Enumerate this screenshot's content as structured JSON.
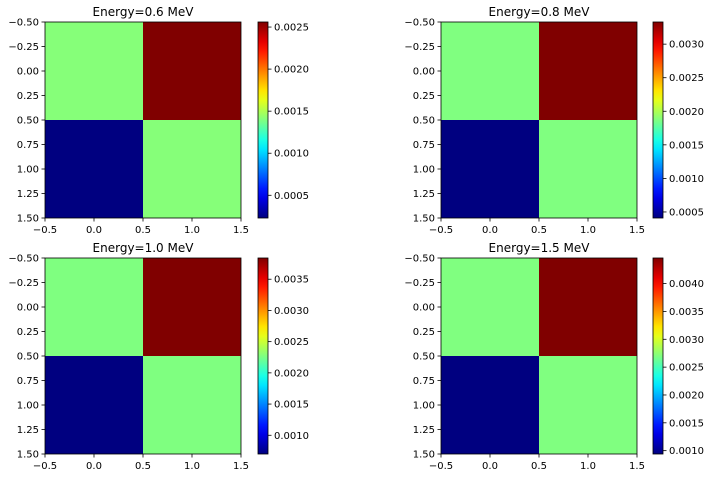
{
  "chart_data": [
    {
      "type": "heatmap",
      "title": "Energy=0.6 MeV",
      "xlim": [
        -0.5,
        1.5
      ],
      "ylim": [
        1.5,
        -0.5
      ],
      "x_ticks": [
        "−0.5",
        "0.0",
        "0.5",
        "1.0",
        "1.5"
      ],
      "y_ticks": [
        "−0.50",
        "−0.25",
        "0.00",
        "0.25",
        "0.50",
        "0.75",
        "1.00",
        "1.25",
        "1.50"
      ],
      "values": [
        [
          0.00141,
          0.00256
        ],
        [
          0.00023,
          0.00141
        ]
      ],
      "colorbar": {
        "vmin": 0.00023,
        "vmax": 0.00256,
        "ticks": [
          0.0005,
          0.001,
          0.0015,
          0.002,
          0.0025
        ],
        "tick_labels": [
          "0.0005",
          "0.0010",
          "0.0015",
          "0.0020",
          "0.0025"
        ]
      }
    },
    {
      "type": "heatmap",
      "title": "Energy=0.8 MeV",
      "xlim": [
        -0.5,
        1.5
      ],
      "ylim": [
        1.5,
        -0.5
      ],
      "x_ticks": [
        "−0.5",
        "0.0",
        "0.5",
        "1.0",
        "1.5"
      ],
      "y_ticks": [
        "−0.50",
        "−0.25",
        "0.00",
        "0.25",
        "0.50",
        "0.75",
        "1.00",
        "1.25",
        "1.50"
      ],
      "values": [
        [
          0.00187,
          0.00333
        ],
        [
          0.00041,
          0.00187
        ]
      ],
      "colorbar": {
        "vmin": 0.00041,
        "vmax": 0.00333,
        "ticks": [
          0.0005,
          0.001,
          0.0015,
          0.002,
          0.0025,
          0.003
        ],
        "tick_labels": [
          "0.0005",
          "0.0010",
          "0.0015",
          "0.0020",
          "0.0025",
          "0.0030"
        ]
      }
    },
    {
      "type": "heatmap",
      "title": "Energy=1.0 MeV",
      "xlim": [
        -0.5,
        1.5
      ],
      "ylim": [
        1.5,
        -0.5
      ],
      "x_ticks": [
        "−0.5",
        "0.0",
        "0.5",
        "1.0",
        "1.5"
      ],
      "y_ticks": [
        "−0.50",
        "−0.25",
        "0.00",
        "0.25",
        "0.50",
        "0.75",
        "1.00",
        "1.25",
        "1.50"
      ],
      "values": [
        [
          0.00227,
          0.00384
        ],
        [
          0.0007,
          0.00227
        ]
      ],
      "colorbar": {
        "vmin": 0.0007,
        "vmax": 0.00384,
        "ticks": [
          0.001,
          0.0015,
          0.002,
          0.0025,
          0.003,
          0.0035
        ],
        "tick_labels": [
          "0.0010",
          "0.0015",
          "0.0020",
          "0.0025",
          "0.0030",
          "0.0035"
        ]
      }
    },
    {
      "type": "heatmap",
      "title": "Energy=1.5 MeV",
      "xlim": [
        -0.5,
        1.5
      ],
      "ylim": [
        1.5,
        -0.5
      ],
      "x_ticks": [
        "−0.5",
        "0.0",
        "0.5",
        "1.0",
        "1.5"
      ],
      "y_ticks": [
        "−0.50",
        "−0.25",
        "0.00",
        "0.25",
        "0.50",
        "0.75",
        "1.00",
        "1.25",
        "1.50"
      ],
      "values": [
        [
          0.0027,
          0.00446
        ],
        [
          0.00094,
          0.0027
        ]
      ],
      "colorbar": {
        "vmin": 0.00094,
        "vmax": 0.00446,
        "ticks": [
          0.001,
          0.0015,
          0.002,
          0.0025,
          0.003,
          0.0035,
          0.004
        ],
        "tick_labels": [
          "0.0010",
          "0.0015",
          "0.0020",
          "0.0025",
          "0.0030",
          "0.0035",
          "0.0040"
        ]
      }
    }
  ],
  "colormap": "jet"
}
